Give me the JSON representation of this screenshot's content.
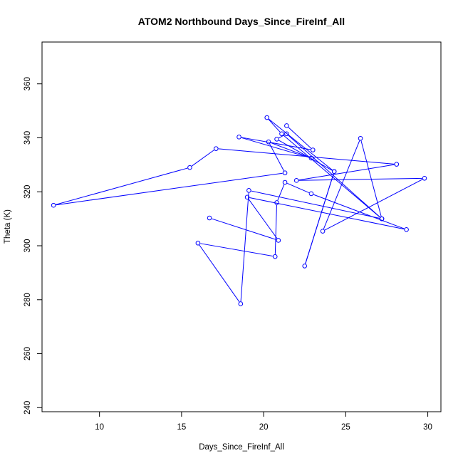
{
  "chart_data": {
    "type": "line",
    "title": "ATOM2 Northbound Days_Since_FireInf_All",
    "xlabel": "Days_Since_FireInf_All",
    "ylabel": "Theta (K)",
    "xlim": [
      6.5,
      30.8
    ],
    "ylim": [
      238.5,
      375.5
    ],
    "xticks": [
      10,
      15,
      20,
      25,
      30
    ],
    "yticks": [
      240,
      260,
      280,
      300,
      320,
      340,
      360
    ],
    "series": [
      {
        "color": "#0000ff",
        "markers": "open-circle",
        "points": [
          [
            21.4,
            344.5
          ],
          [
            23.0,
            335.5
          ],
          [
            18.5,
            340.3
          ],
          [
            22.9,
            332.5
          ],
          [
            20.3,
            338.5
          ],
          [
            21.3,
            327.0
          ],
          [
            7.2,
            315.0
          ],
          [
            15.5,
            329.0
          ],
          [
            17.1,
            336.0
          ],
          [
            28.1,
            330.2
          ],
          [
            22.0,
            324.2
          ],
          [
            29.8,
            325.0
          ],
          [
            23.6,
            305.4
          ],
          [
            25.9,
            339.8
          ],
          [
            27.2,
            310.0
          ],
          [
            21.4,
            341.5
          ],
          [
            20.8,
            339.5
          ],
          [
            24.3,
            327.5
          ],
          [
            22.5,
            292.5
          ],
          [
            24.3,
            327.5
          ],
          [
            20.2,
            347.5
          ],
          [
            21.1,
            341.5
          ],
          [
            27.2,
            310.0
          ],
          [
            19.1,
            320.5
          ],
          [
            18.6,
            278.5
          ],
          [
            16.0,
            301.0
          ],
          [
            20.7,
            296.0
          ],
          [
            20.8,
            316.0
          ],
          [
            21.3,
            323.5
          ],
          [
            22.9,
            319.3
          ],
          [
            28.7,
            306.0
          ],
          [
            19.0,
            318.0
          ],
          [
            20.9,
            302.0
          ],
          [
            16.7,
            310.3
          ]
        ]
      }
    ],
    "grid": false,
    "legend": "none"
  }
}
